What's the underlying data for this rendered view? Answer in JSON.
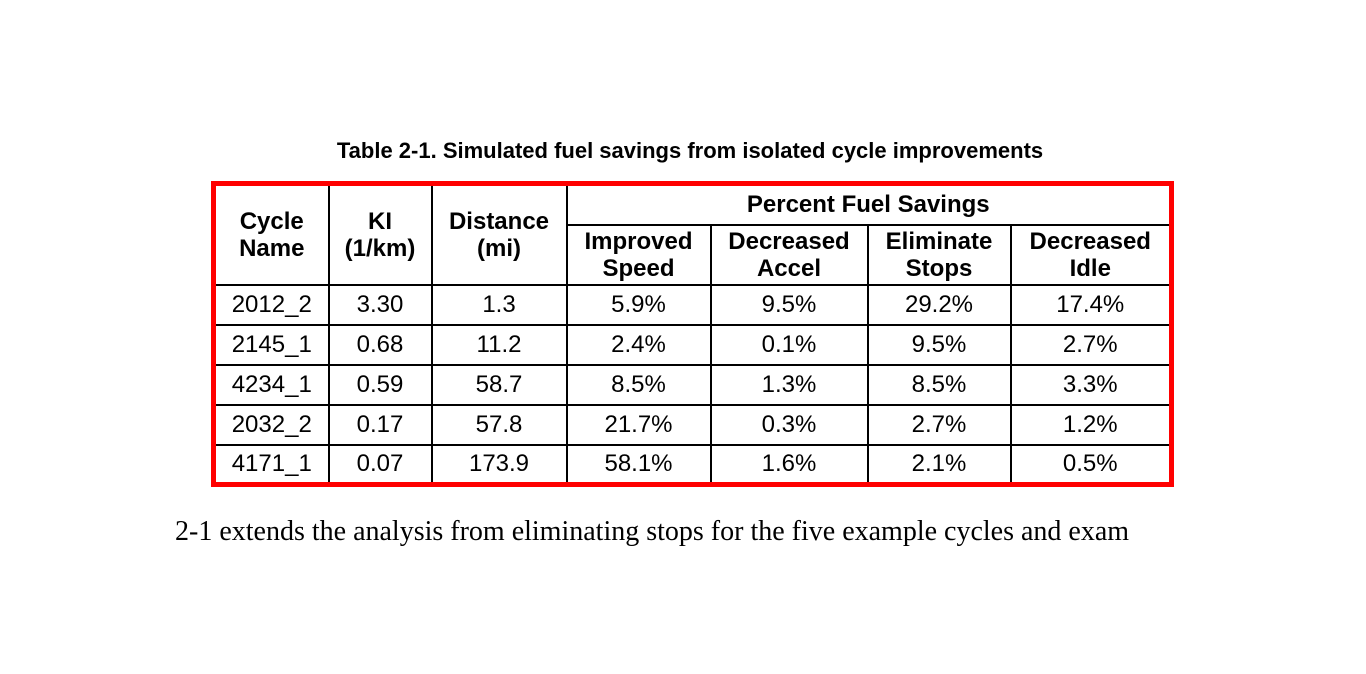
{
  "document": {
    "table_caption": "Table 2-1. Simulated fuel savings from isolated cycle improvements",
    "paragraph_fragment": "2-1 extends the analysis from eliminating stops for the five example cycles and exam"
  },
  "table": {
    "border_color": "#ff0000",
    "grid_color": "#000000",
    "header": {
      "cycle_name": "Cycle Name",
      "ki": "KI (1/km)",
      "distance": "Distance (mi)",
      "group": "Percent Fuel Savings",
      "sub": [
        "Improved Speed",
        "Decreased Accel",
        "Eliminate Stops",
        "Decreased Idle"
      ]
    },
    "column_keys": [
      "cycle",
      "ki",
      "distance",
      "improved_speed",
      "decreased_accel",
      "eliminate_stops",
      "decreased_idle"
    ],
    "rows": [
      {
        "cycle": "2012_2",
        "ki": "3.30",
        "distance": "1.3",
        "improved_speed": "5.9%",
        "decreased_accel": "9.5%",
        "eliminate_stops": "29.2%",
        "decreased_idle": "17.4%"
      },
      {
        "cycle": "2145_1",
        "ki": "0.68",
        "distance": "11.2",
        "improved_speed": "2.4%",
        "decreased_accel": "0.1%",
        "eliminate_stops": "9.5%",
        "decreased_idle": "2.7%"
      },
      {
        "cycle": "4234_1",
        "ki": "0.59",
        "distance": "58.7",
        "improved_speed": "8.5%",
        "decreased_accel": "1.3%",
        "eliminate_stops": "8.5%",
        "decreased_idle": "3.3%"
      },
      {
        "cycle": "2032_2",
        "ki": "0.17",
        "distance": "57.8",
        "improved_speed": "21.7%",
        "decreased_accel": "0.3%",
        "eliminate_stops": "2.7%",
        "decreased_idle": "1.2%"
      },
      {
        "cycle": "4171_1",
        "ki": "0.07",
        "distance": "173.9",
        "improved_speed": "58.1%",
        "decreased_accel": "1.6%",
        "eliminate_stops": "2.1%",
        "decreased_idle": "0.5%"
      }
    ]
  }
}
